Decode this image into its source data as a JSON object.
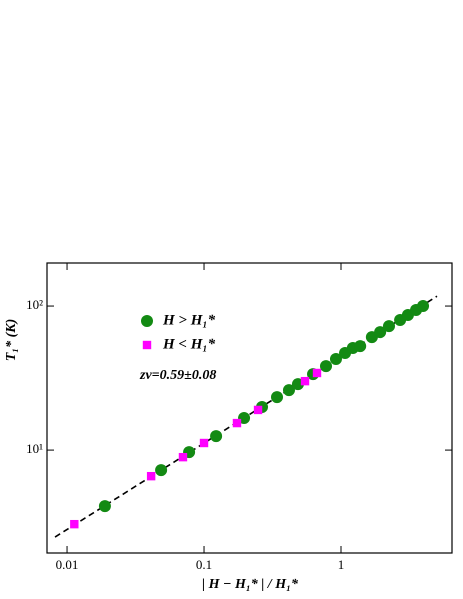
{
  "chart_data": {
    "type": "scatter",
    "x_label": "| H − H₁* | / H₁*",
    "y_label": "T₁* (K)",
    "annotation": "zν=0.59±0.08",
    "xscale": "log",
    "yscale": "log",
    "xlim": [
      0.00714,
      6.46
    ],
    "ylim": [
      1.93,
      199
    ],
    "xticks": [
      0.01,
      0.1,
      1
    ],
    "yticks": [
      {
        "value": 10,
        "label": "10¹"
      },
      {
        "value": 100,
        "label": "10²"
      }
    ],
    "legend": "upper left",
    "series": [
      {
        "name": "H > H₁*",
        "color": "#138a13",
        "marker": "circle",
        "x": [
          0.0189,
          0.0486,
          0.0778,
          0.1225,
          0.196,
          0.265,
          0.341,
          0.417,
          0.485,
          0.625,
          0.777,
          0.919,
          1.07,
          1.22,
          1.38,
          1.68,
          1.93,
          2.24,
          2.7,
          3.08,
          3.53,
          3.97
        ],
        "values": [
          4.08,
          7.26,
          9.68,
          12.5,
          16.7,
          19.9,
          23.3,
          26.1,
          28.7,
          33.7,
          38.3,
          42.9,
          47.2,
          51.1,
          52.7,
          60.9,
          65.9,
          72.6,
          80.0,
          86.7,
          93.8,
          100
        ]
      },
      {
        "name": "H < H₁*",
        "color": "#ff00ff",
        "marker": "square",
        "x": [
          0.0113,
          0.0411,
          0.0702,
          0.1,
          0.174,
          0.248,
          0.546,
          0.668
        ],
        "values": [
          3.06,
          6.59,
          8.93,
          11.2,
          15.4,
          19.0,
          30.1,
          34.3
        ]
      }
    ],
    "fit_line": {
      "x": [
        0.00817,
        5.02
      ],
      "values": [
        2.49,
        117
      ],
      "color": "#000000"
    }
  }
}
